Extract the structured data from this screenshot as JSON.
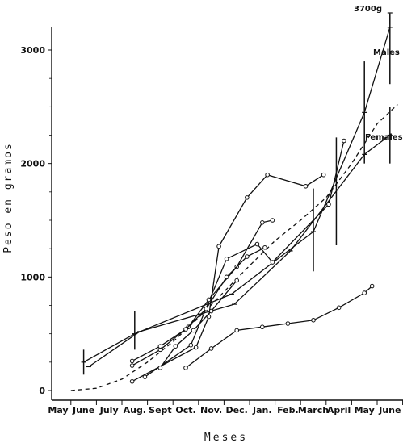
{
  "chart_data": {
    "type": "line",
    "title": "",
    "xlabel": "Meses",
    "ylabel": "Peso en gramos",
    "categories": [
      "May",
      "June",
      "July",
      "Aug.",
      "Sept",
      "Oct.",
      "Nov.",
      "Dec.",
      "Jan.",
      "Feb.",
      "March",
      "April",
      "May",
      "June"
    ],
    "ylim": [
      -60,
      3200
    ],
    "yticks": [
      0,
      1000,
      2000,
      3000
    ],
    "grid": false,
    "legend": "none",
    "annotations": {
      "males": "Males",
      "females": "Females",
      "max": "3700g"
    },
    "series": [
      {
        "style": "solid",
        "marker": "tick",
        "points": [
          [
            1.0,
            250
          ],
          [
            3.0,
            500
          ],
          [
            6.8,
            850
          ],
          [
            10.0,
            1400
          ],
          [
            12.0,
            2450
          ],
          [
            13.0,
            3200
          ]
        ]
      },
      {
        "style": "solid",
        "marker": "tick",
        "points": [
          [
            1.2,
            210
          ],
          [
            3.2,
            520
          ],
          [
            6.9,
            760
          ],
          [
            9.1,
            1230
          ],
          [
            12.0,
            2080
          ],
          [
            13.0,
            2250
          ]
        ]
      },
      {
        "style": "solid",
        "marker": "circle",
        "points": [
          [
            2.9,
            80
          ],
          [
            5.4,
            380
          ],
          [
            5.9,
            650
          ],
          [
            6.3,
            1270
          ],
          [
            7.4,
            1700
          ],
          [
            8.2,
            1900
          ],
          [
            9.7,
            1800
          ],
          [
            10.4,
            1900
          ]
        ]
      },
      {
        "style": "solid",
        "marker": "circle",
        "points": [
          [
            3.4,
            120
          ],
          [
            5.2,
            400
          ],
          [
            6.6,
            1160
          ],
          [
            7.8,
            1290
          ],
          [
            8.4,
            1130
          ],
          [
            10.6,
            1640
          ],
          [
            11.2,
            2200
          ]
        ]
      },
      {
        "style": "solid",
        "marker": "circle",
        "points": [
          [
            2.9,
            220
          ],
          [
            4.0,
            360
          ],
          [
            5.1,
            560
          ],
          [
            5.9,
            800
          ],
          [
            7.0,
            1090
          ],
          [
            8.0,
            1480
          ],
          [
            8.4,
            1500
          ]
        ]
      },
      {
        "style": "solid",
        "marker": "circle",
        "points": [
          [
            2.9,
            260
          ],
          [
            4.0,
            390
          ],
          [
            5.0,
            540
          ],
          [
            5.8,
            720
          ],
          [
            6.6,
            1000
          ],
          [
            7.4,
            1180
          ],
          [
            8.1,
            1260
          ]
        ]
      },
      {
        "style": "solid",
        "marker": "circle",
        "points": [
          [
            4.0,
            200
          ],
          [
            4.6,
            390
          ],
          [
            5.3,
            530
          ],
          [
            6.0,
            700
          ],
          [
            7.0,
            970
          ]
        ]
      },
      {
        "style": "solid",
        "marker": "circle",
        "points": [
          [
            5.0,
            200
          ],
          [
            6.0,
            370
          ],
          [
            7.0,
            530
          ],
          [
            8.0,
            560
          ],
          [
            9.0,
            590
          ],
          [
            10.0,
            620
          ],
          [
            11.0,
            730
          ],
          [
            12.0,
            860
          ],
          [
            12.3,
            920
          ]
        ]
      },
      {
        "style": "dashed",
        "marker": "none",
        "points": [
          [
            0.5,
            0
          ],
          [
            1.5,
            20
          ],
          [
            2.5,
            100
          ],
          [
            3.5,
            250
          ],
          [
            4.5,
            430
          ],
          [
            5.5,
            640
          ],
          [
            6.5,
            870
          ],
          [
            7.5,
            1100
          ],
          [
            8.5,
            1320
          ],
          [
            9.5,
            1500
          ],
          [
            10.5,
            1700
          ],
          [
            11.5,
            2000
          ],
          [
            12.5,
            2350
          ],
          [
            13.3,
            2520
          ]
        ]
      }
    ],
    "error_bars": [
      {
        "x": 1.0,
        "low": 140,
        "high": 360
      },
      {
        "x": 3.0,
        "low": 360,
        "high": 700
      },
      {
        "x": 10.0,
        "low": 1050,
        "high": 1780
      },
      {
        "x": 10.9,
        "low": 1280,
        "high": 2230
      },
      {
        "x": 12.0,
        "low": 2000,
        "high": 2900
      },
      {
        "x": 13.0,
        "low": 2700,
        "high": 3320
      },
      {
        "x": 13.0,
        "low": 2000,
        "high": 2500
      }
    ]
  }
}
